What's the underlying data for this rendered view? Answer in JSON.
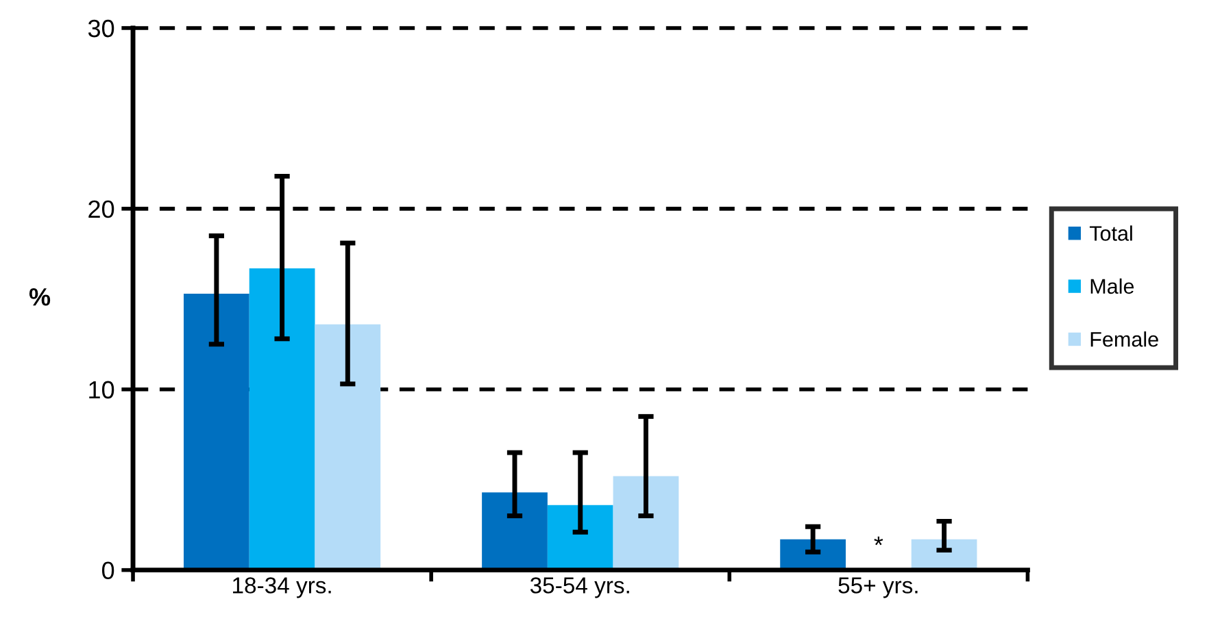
{
  "chart_data": {
    "type": "bar",
    "ylabel": "%",
    "categories": [
      "18-34 yrs.",
      "35-54 yrs.",
      "55+ yrs."
    ],
    "series": [
      {
        "name": "Total",
        "color": "#0070c0",
        "values": [
          15.3,
          4.3,
          1.7
        ],
        "errors": [
          [
            12.5,
            18.5
          ],
          [
            3.0,
            6.5
          ],
          [
            1.0,
            2.4
          ]
        ]
      },
      {
        "name": "Male",
        "color": "#00b0f0",
        "values": [
          16.7,
          3.6,
          null
        ],
        "errors": [
          [
            12.8,
            21.8
          ],
          [
            2.1,
            6.5
          ],
          null
        ]
      },
      {
        "name": "Female",
        "color": "#b4dcf8",
        "values": [
          13.6,
          5.2,
          1.7
        ],
        "errors": [
          [
            10.3,
            18.1
          ],
          [
            3.0,
            8.5
          ],
          [
            1.1,
            2.7
          ]
        ]
      }
    ],
    "ylim": [
      0,
      30
    ],
    "yticks": [
      0,
      10,
      20,
      30
    ],
    "grid": "y",
    "legend": "right",
    "annotations": [
      "*"
    ]
  }
}
